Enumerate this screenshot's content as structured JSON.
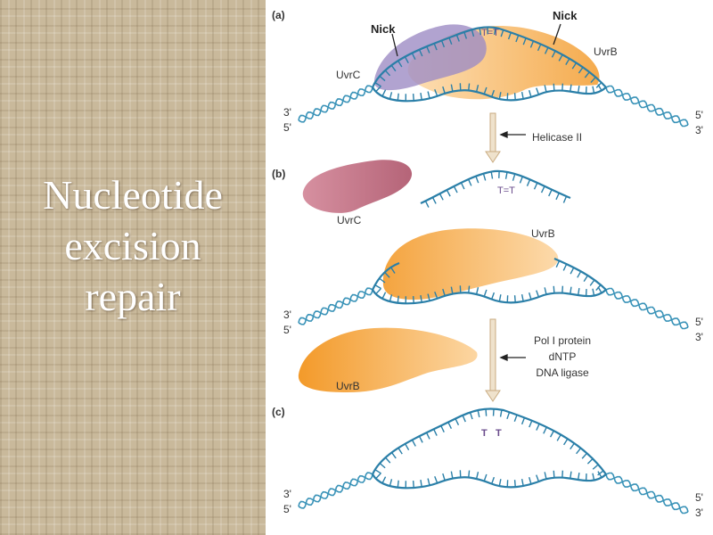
{
  "slide": {
    "title_lines": [
      "Nucleotide",
      "excision",
      "repair"
    ]
  },
  "diagram": {
    "panel_labels": [
      "(a)",
      "(b)",
      "(c)"
    ],
    "nick_label": "Nick",
    "uvrc": "UvrC",
    "uvrb": "UvrB",
    "dimer": "T=T",
    "thymines": [
      "T",
      "T"
    ],
    "three_prime": "3'",
    "five_prime": "5'",
    "step1": "Helicase II",
    "step2": [
      "Pol I protein",
      "dNTP",
      "DNA ligase"
    ],
    "colors": {
      "dna": "#2a7fa8",
      "uvrb": "#f4a640",
      "uvrc_a": "#9d8cc4",
      "uvrc_b": "#c07486",
      "arrow": "#e6d3b3",
      "dimer": "#6a4c8c"
    }
  }
}
